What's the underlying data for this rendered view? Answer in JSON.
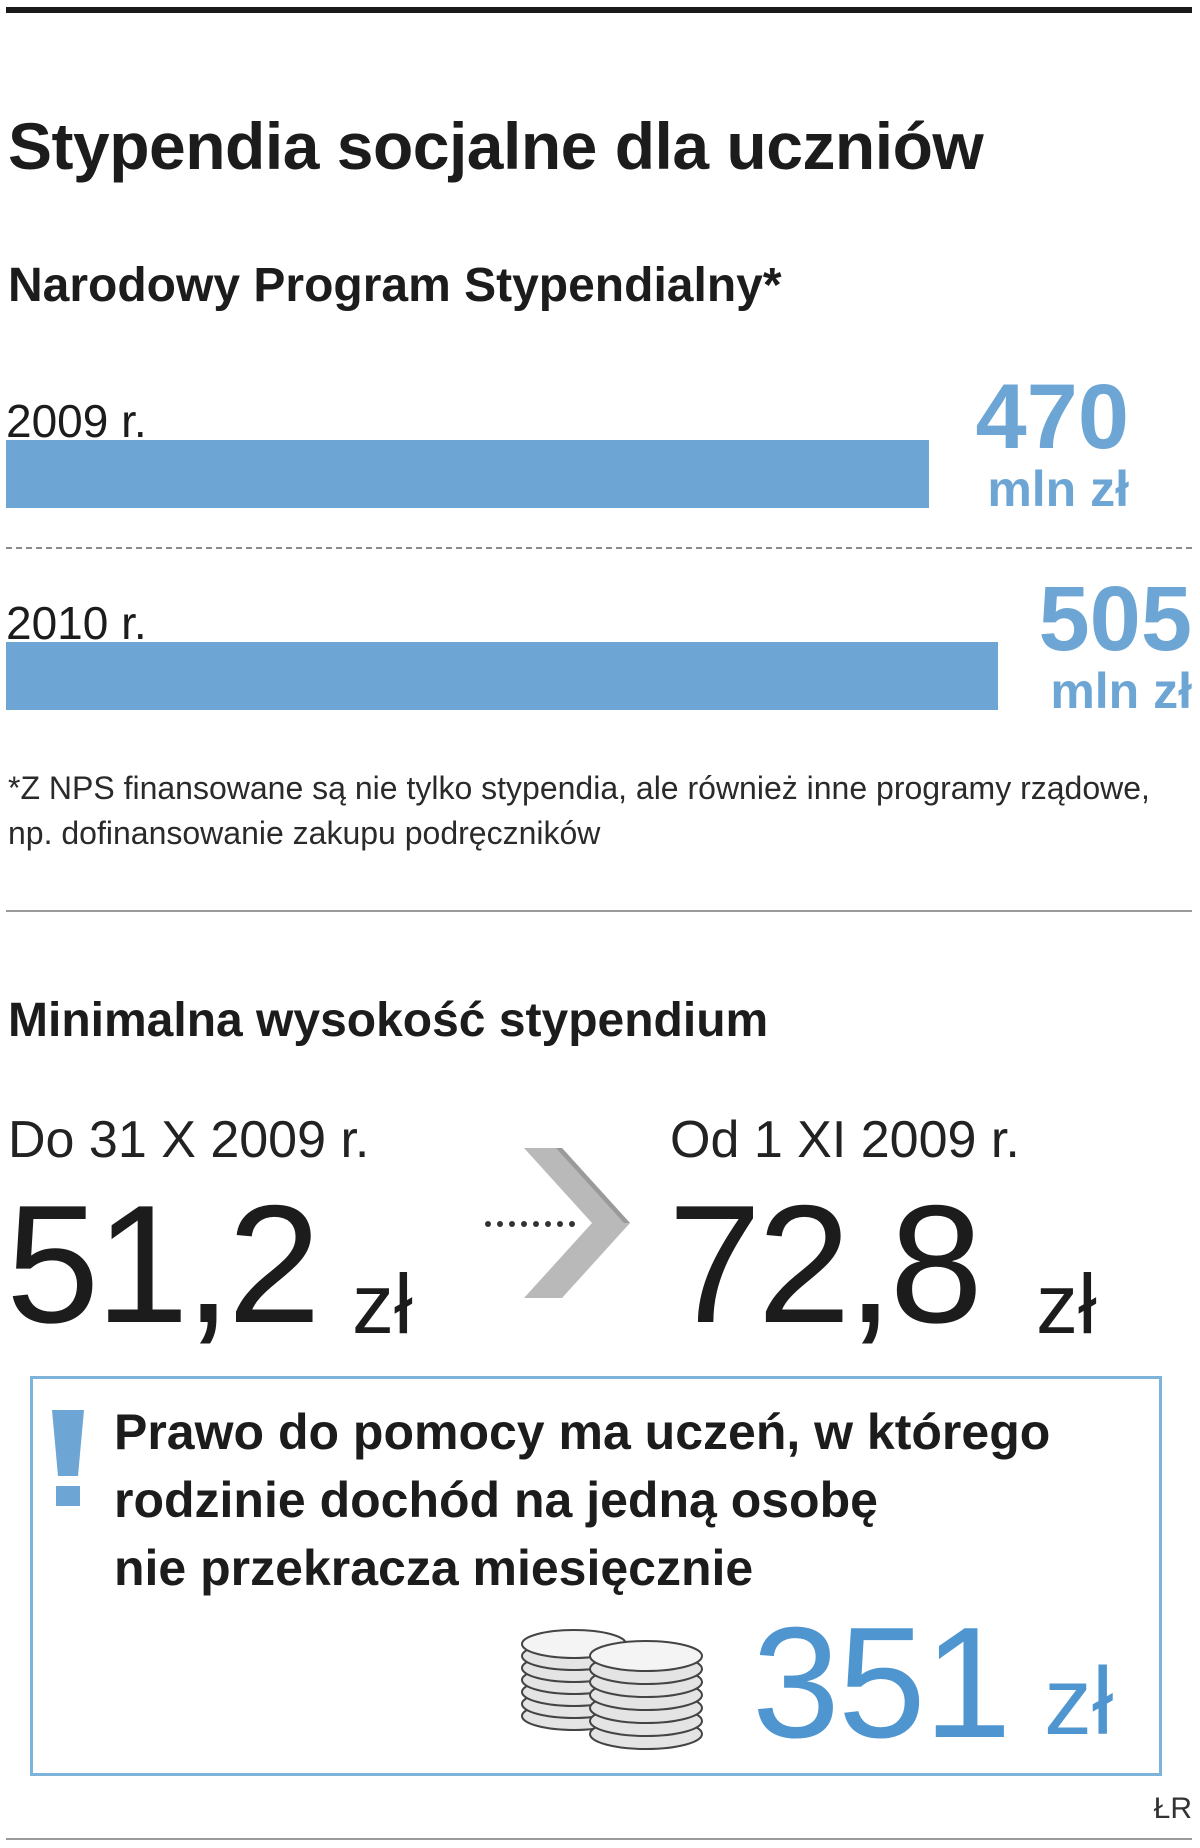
{
  "title": "Stypendia socjalne dla uczniów",
  "chart_data": {
    "type": "bar",
    "title": "Narodowy Program Stypendialny*",
    "categories": [
      "2009 r.",
      "2010 r."
    ],
    "values": [
      470,
      505
    ],
    "value_labels": [
      "470",
      "505"
    ],
    "unit": "mln zł",
    "bar_color": "#6da6d4",
    "footnote": "*Z NPS finansowane są nie tylko stypendia, ale również inne programy rządowe, np. dofinansowanie zakupu podręczników"
  },
  "minimum": {
    "heading": "Minimalna wysokość stypendium",
    "before": {
      "label": "Do 31 X 2009 r.",
      "amount": "51,2",
      "unit": "zł"
    },
    "after": {
      "label": "Od 1 XI 2009 r.",
      "amount": "72,8",
      "unit": "zł"
    },
    "arrow_icon": "chevron-right-icon"
  },
  "info": {
    "icon": "exclamation-icon",
    "lines": [
      "Prawo do pomocy ma uczeń, w którego",
      "rodzinie dochód na jedną osobę",
      "nie przekracza miesięcznie"
    ],
    "amount": "351",
    "unit": "zł",
    "coins_icon": "coin-stack-icon",
    "accent": "#4f96d0"
  },
  "credit": "ŁR"
}
